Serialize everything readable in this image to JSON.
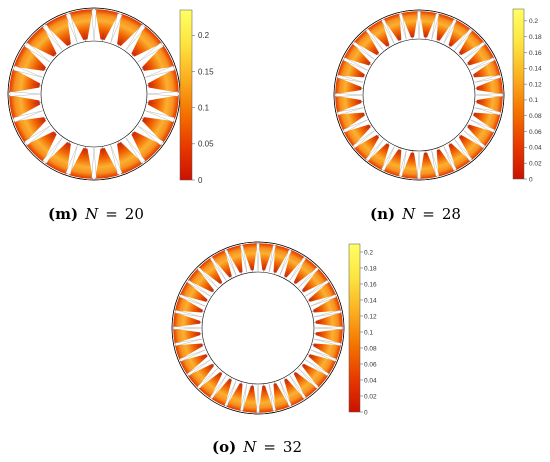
{
  "colors": {
    "colormap": [
      "#cc1100",
      "#e83a00",
      "#f57400",
      "#fbb020",
      "#fde440",
      "#ffff66"
    ],
    "outline": "#000000",
    "background": "#ffffff"
  },
  "panels": [
    {
      "id": "m",
      "pole_count": 20,
      "caption": {
        "letter": "(m)",
        "variable": "N",
        "equals": "=",
        "value": "20"
      },
      "colorbar": {
        "ticks": [
          "0.2",
          "0.15",
          "0.1",
          "0.05",
          "0"
        ],
        "min": 0,
        "max": 0.235
      }
    },
    {
      "id": "n",
      "pole_count": 28,
      "caption": {
        "letter": "(n)",
        "variable": "N",
        "equals": "=",
        "value": "28"
      },
      "colorbar": {
        "ticks": [
          "0.2",
          "0.18",
          "0.16",
          "0.14",
          "0.12",
          "0.1",
          "0.08",
          "0.06",
          "0.04",
          "0.02",
          "0"
        ],
        "min": 0,
        "max": 0.215
      }
    },
    {
      "id": "o",
      "pole_count": 32,
      "caption": {
        "letter": "(o)",
        "variable": "N",
        "equals": "=",
        "value": "32"
      },
      "colorbar": {
        "ticks": [
          "0.2",
          "0.18",
          "0.16",
          "0.14",
          "0.12",
          "0.1",
          "0.08",
          "0.06",
          "0.04",
          "0.02",
          "0"
        ],
        "min": 0,
        "max": 0.21
      }
    }
  ]
}
